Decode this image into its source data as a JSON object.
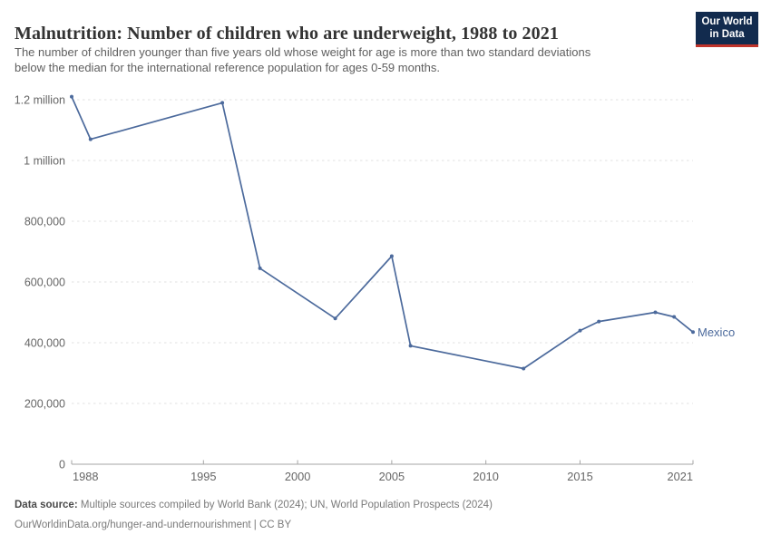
{
  "header": {
    "title": "Malnutrition: Number of children who are underweight, 1988 to 2021",
    "subtitle_lines": [
      "The number of children younger than five years old whose weight for age is more than two standard deviations",
      "below the median for the international reference population for ages 0-59 months."
    ],
    "logo": {
      "line1": "Our World",
      "line2": "in Data",
      "bg_color": "#122B4E",
      "accent_color": "#C0342B"
    }
  },
  "chart_data": {
    "type": "line",
    "title": "Malnutrition: Number of children who are underweight, 1988 to 2021",
    "xlabel": "",
    "ylabel": "",
    "xlim": [
      1988,
      2021
    ],
    "ylim": [
      0,
      1200000
    ],
    "grid": "horizontal-dashed",
    "x_ticks": [
      1988,
      1995,
      2000,
      2005,
      2010,
      2015,
      2021
    ],
    "y_ticks": [
      {
        "value": 0,
        "label": "0"
      },
      {
        "value": 200000,
        "label": "200,000"
      },
      {
        "value": 400000,
        "label": "400,000"
      },
      {
        "value": 600000,
        "label": "600,000"
      },
      {
        "value": 800000,
        "label": "800,000"
      },
      {
        "value": 1000000,
        "label": "1 million"
      },
      {
        "value": 1200000,
        "label": "1.2 million"
      }
    ],
    "series": [
      {
        "name": "Mexico",
        "color": "#4C6A9C",
        "points": [
          {
            "year": 1988,
            "value": 1210000
          },
          {
            "year": 1989,
            "value": 1070000
          },
          {
            "year": 1996,
            "value": 1190000
          },
          {
            "year": 1998,
            "value": 645000
          },
          {
            "year": 2002,
            "value": 480000
          },
          {
            "year": 2005,
            "value": 685000
          },
          {
            "year": 2006,
            "value": 390000
          },
          {
            "year": 2012,
            "value": 315000
          },
          {
            "year": 2015,
            "value": 440000
          },
          {
            "year": 2016,
            "value": 470000
          },
          {
            "year": 2019,
            "value": 500000
          },
          {
            "year": 2020,
            "value": 485000
          },
          {
            "year": 2021,
            "value": 435000
          }
        ]
      }
    ],
    "legend_position": "end-of-line-label"
  },
  "footer": {
    "source_label": "Data source:",
    "source_text": "Multiple sources compiled by World Bank (2024); UN, World Population Prospects (2024)",
    "note_text": "OurWorldinData.org/hunger-and-undernourishment | CC BY"
  },
  "colors": {
    "line": "#4C6A9C",
    "grid": "#E1E1E1",
    "axis": "#A5A5A5",
    "tick_label": "#666666",
    "title": "#333333",
    "subtitle": "#5F5F5F"
  }
}
